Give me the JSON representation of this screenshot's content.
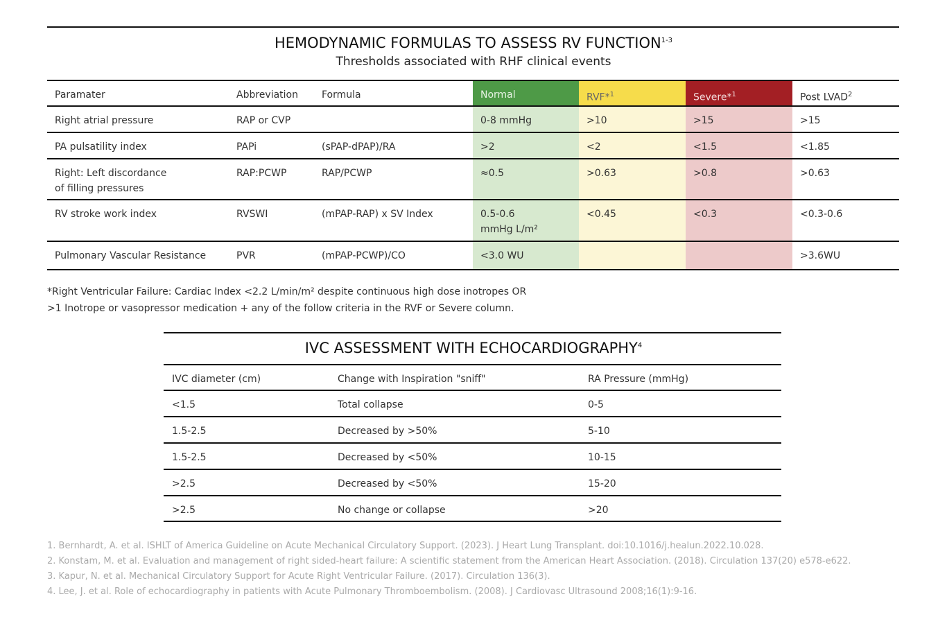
{
  "table1": {
    "title": "HEMODYNAMIC FORMULAS TO ASSESS RV FUNCTION",
    "title_sup": "1-3",
    "subtitle": "Thresholds associated with RHF clinical events",
    "headers": [
      {
        "text": "Paramater"
      },
      {
        "text": "Abbreviation"
      },
      {
        "text": "Formula"
      },
      {
        "text": "Normal"
      },
      {
        "text": "RVF*",
        "sup": "1"
      },
      {
        "text": "Severe*",
        "sup": "1"
      },
      {
        "text": "Post LVAD",
        "sup": "2"
      }
    ],
    "rows": [
      [
        "Right atrial pressure",
        "RAP or CVP",
        null,
        "0-8 mmHg",
        ">10",
        ">15",
        ">15"
      ],
      [
        "PA pulsatility index",
        "PAPi",
        "(sPAP-dPAP)/RA",
        ">2",
        "<2",
        "<1.5",
        "<1.85"
      ],
      [
        [
          "Right: Left discordance",
          "of filling pressures"
        ],
        "RAP:PCWP",
        "RAP/PCWP",
        "≈0.5",
        ">0.63",
        ">0.8",
        ">0.63"
      ],
      [
        "RV stroke work index",
        "RVSWI",
        "(mPAP-RAP) x SV Index",
        [
          "0.5-0.6",
          "mmHg L/m²"
        ],
        "<0.45",
        "<0.3",
        "<0.3-0.6"
      ],
      [
        "Pulmonary Vascular Resistance",
        "PVR",
        "(mPAP-PCWP)/CO",
        "<3.0 WU",
        null,
        null,
        ">3.6WU"
      ]
    ]
  },
  "footnote": [
    "*Right Ventricular Failure: Cardiac Index <2.2 L/min/m² despite continuous high dose inotropes OR",
    ">1 Inotrope or vasopressor medication + any of the follow criteria in the RVF or Severe column."
  ],
  "table2": {
    "title": "IVC ASSESSMENT WITH ECHOCARDIOGRAPHY",
    "title_sup": "4",
    "headers": [
      "IVC diameter (cm)",
      "Change with Inspiration \"sniff\"",
      "RA Pressure (mmHg)"
    ],
    "rows": [
      [
        "<1.5",
        "Total collapse",
        "0-5"
      ],
      [
        "1.5-2.5",
        "Decreased by >50%",
        "5-10"
      ],
      [
        "1.5-2.5",
        "Decreased by <50%",
        "10-15"
      ],
      [
        ">2.5",
        "Decreased by <50%",
        "15-20"
      ],
      [
        ">2.5",
        "No change or collapse",
        ">20"
      ]
    ]
  },
  "references": [
    "1. Bernhardt, A. et al. ISHLT of America Guideline on Acute Mechanical Circulatory Support. (2023). J Heart Lung Transplant. doi:10.1016/j.healun.2022.10.028.",
    "2. Konstam, M. et al. Evaluation and management of right sided-heart failure: A scientific statement from the American Heart Association. (2018). Circulation 137(20) e578-e622.",
    "3. Kapur, N. et al. Mechanical Circulatory Support for Acute Right Ventricular Failure. (2017). Circulation 136(3).",
    "4. Lee, J. et al. Role of echocardiography in patients with Acute Pulmonary Thromboembolism. (2008). J Cardiovasc Ultrasound 2008;16(1):9-16."
  ]
}
